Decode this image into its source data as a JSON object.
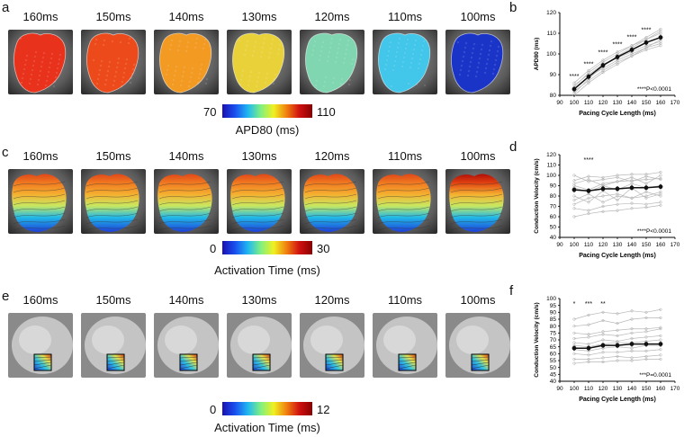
{
  "panels": {
    "a": "a",
    "b": "b",
    "c": "c",
    "d": "d",
    "e": "e",
    "f": "f"
  },
  "cycle_labels": [
    "160ms",
    "150ms",
    "140ms",
    "130ms",
    "120ms",
    "110ms",
    "100ms"
  ],
  "row_a": {
    "colorbar": {
      "min": "70",
      "max": "110",
      "title": "APD80 (ms)"
    },
    "map_colors": [
      "#e8321c",
      "#ec4a1a",
      "#f29a22",
      "#e9d13a",
      "#7fd6b0",
      "#42c6ea",
      "#1a34c8"
    ]
  },
  "row_c": {
    "colorbar": {
      "min": "0",
      "max": "30",
      "title": "Activation Time (ms)"
    }
  },
  "row_e": {
    "colorbar": {
      "min": "0",
      "max": "12",
      "title": "Activation Time (ms)"
    }
  },
  "chart_data": [
    {
      "id": "b",
      "type": "line",
      "ylabel": "APD80 (ms)",
      "xlabel": "Pacing Cycle Length (ms)",
      "xlim": [
        90,
        170
      ],
      "ylim": [
        80,
        120
      ],
      "xticks": [
        "90",
        "100",
        "110",
        "120",
        "130",
        "140",
        "150",
        "160",
        "170"
      ],
      "yticks": [
        "80",
        "90",
        "100",
        "110",
        "120"
      ],
      "x": [
        100,
        110,
        120,
        130,
        140,
        150,
        160
      ],
      "mean": [
        83,
        89,
        94.5,
        98.5,
        102,
        105.5,
        108
      ],
      "individual": [
        [
          81,
          88,
          94,
          99,
          103,
          107,
          111
        ],
        [
          84,
          91,
          96,
          100,
          104,
          107,
          110
        ],
        [
          82,
          87,
          92,
          96,
          99,
          102,
          104
        ],
        [
          85,
          90,
          95,
          98,
          101,
          104,
          106
        ],
        [
          83,
          89,
          93,
          97,
          100,
          103,
          105
        ],
        [
          80,
          86,
          91,
          95,
          99,
          103,
          107
        ],
        [
          86,
          92,
          97,
          101,
          104,
          108,
          112
        ]
      ],
      "stars": [
        "****",
        "****",
        "****",
        "****",
        "****",
        "****",
        ""
      ],
      "pvalue": "****P<0.0001"
    },
    {
      "id": "d",
      "type": "line",
      "ylabel": "Conduction Velocity (cm/s)",
      "xlabel": "Pacing Cycle Length (ms)",
      "xlim": [
        90,
        170
      ],
      "ylim": [
        40,
        120
      ],
      "xticks": [
        "90",
        "100",
        "110",
        "120",
        "130",
        "140",
        "150",
        "160",
        "170"
      ],
      "yticks": [
        "40",
        "50",
        "60",
        "70",
        "80",
        "90",
        "100",
        "110",
        "120"
      ],
      "x": [
        100,
        110,
        120,
        130,
        140,
        150,
        160
      ],
      "mean": [
        86,
        85,
        87,
        87,
        88,
        88,
        89
      ],
      "individual": [
        [
          95,
          99,
          98,
          100,
          101,
          101,
          103
        ],
        [
          68,
          66,
          70,
          72,
          73,
          72,
          74
        ],
        [
          80,
          74,
          85,
          76,
          88,
          78,
          82
        ],
        [
          90,
          86,
          92,
          94,
          95,
          96,
          97
        ],
        [
          76,
          82,
          74,
          80,
          78,
          84,
          80
        ],
        [
          60,
          63,
          65,
          66,
          68,
          69,
          71
        ],
        [
          100,
          94,
          96,
          98,
          94,
          99,
          96
        ],
        [
          72,
          78,
          80,
          82,
          78,
          80,
          84
        ],
        [
          88,
          84,
          90,
          86,
          92,
          88,
          90
        ],
        [
          92,
          96,
          90,
          94,
          98,
          92,
          100
        ]
      ],
      "stars": [
        "",
        "****",
        "",
        "",
        "",
        "",
        ""
      ],
      "pvalue": "****P<0.0001"
    },
    {
      "id": "f",
      "type": "line",
      "ylabel": "Conduction Velocity (cm/s)",
      "xlabel": "Pacing Cycle Length (ms)",
      "xlim": [
        90,
        170
      ],
      "ylim": [
        40,
        100
      ],
      "xticks": [
        "90",
        "100",
        "110",
        "120",
        "130",
        "140",
        "150",
        "160",
        "170"
      ],
      "yticks": [
        "40",
        "45",
        "50",
        "55",
        "60",
        "65",
        "70",
        "75",
        "80",
        "85",
        "90",
        "95",
        "100"
      ],
      "x": [
        100,
        110,
        120,
        130,
        140,
        150,
        160
      ],
      "mean": [
        64,
        64,
        66,
        66,
        67,
        67,
        67
      ],
      "individual": [
        [
          85,
          88,
          90,
          89,
          91,
          90,
          92
        ],
        [
          80,
          81,
          84,
          82,
          85,
          86,
          86
        ],
        [
          71,
          72,
          74,
          73,
          75,
          76,
          78
        ],
        [
          68,
          67,
          70,
          69,
          71,
          72,
          73
        ],
        [
          66,
          65,
          67,
          68,
          68,
          69,
          70
        ],
        [
          63,
          62,
          64,
          65,
          64,
          66,
          66
        ],
        [
          60,
          59,
          61,
          61,
          62,
          62,
          63
        ],
        [
          56,
          56,
          57,
          58,
          57,
          58,
          59
        ],
        [
          53,
          54,
          54,
          55,
          55,
          56,
          56
        ],
        [
          75,
          74,
          76,
          77,
          78,
          78,
          79
        ]
      ],
      "stars": [
        "*",
        "***",
        "**",
        "",
        "",
        "",
        ""
      ],
      "pvalue": "***P=0.0001"
    }
  ]
}
